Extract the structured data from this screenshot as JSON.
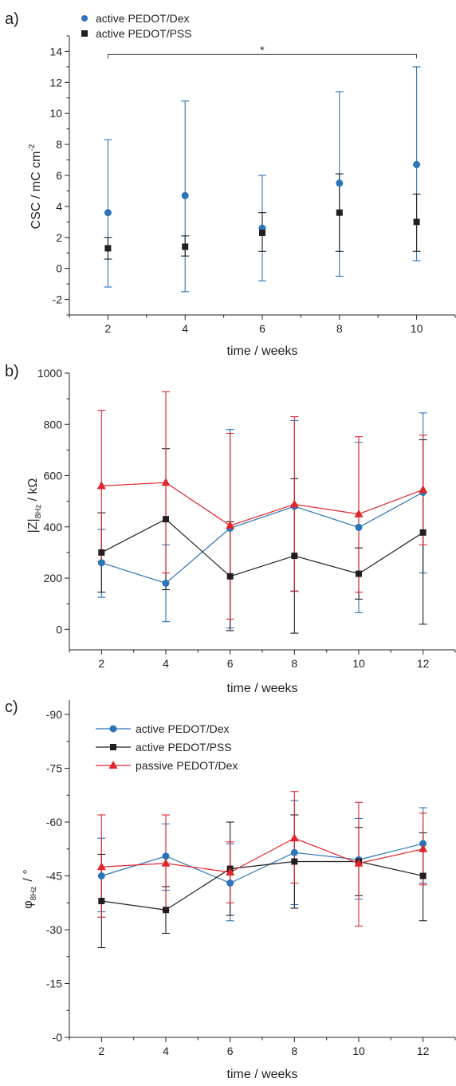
{
  "colors": {
    "blue": "#2b74b8",
    "black": "#231f20",
    "red": "#e0262b",
    "axis": "#231f20"
  },
  "chart_data": [
    {
      "panel_label": "a)",
      "type": "scatter",
      "xlabel": "time / weeks",
      "ylabel": "CSC / mC cm",
      "ylabel_sup": "-2",
      "xlim": [
        1,
        11
      ],
      "ylim": [
        -3,
        15
      ],
      "xticks": [
        2,
        4,
        6,
        8,
        10
      ],
      "yticks": [
        -2,
        0,
        2,
        4,
        6,
        8,
        10,
        12,
        14
      ],
      "legend": "top-left",
      "significance": {
        "label": "*",
        "from": 2,
        "to": 10,
        "y": 13.8
      },
      "series": [
        {
          "name": "active PEDOT/Dex",
          "color": "#2b74b8",
          "marker": "circle",
          "connect": false,
          "x": [
            2,
            4,
            6,
            8,
            10
          ],
          "y": [
            3.6,
            4.7,
            2.6,
            5.5,
            6.7
          ],
          "err_low": [
            -1.2,
            -1.5,
            -0.8,
            -0.5,
            0.5
          ],
          "err_high": [
            8.3,
            10.8,
            6.0,
            11.4,
            13.0
          ]
        },
        {
          "name": "active PEDOT/PSS",
          "color": "#231f20",
          "marker": "square",
          "connect": false,
          "x": [
            2,
            4,
            6,
            8,
            10
          ],
          "y": [
            1.3,
            1.4,
            2.3,
            3.6,
            3.0
          ],
          "err_low": [
            0.6,
            0.8,
            1.1,
            1.1,
            1.1
          ],
          "err_high": [
            2.0,
            2.1,
            3.6,
            6.1,
            4.8
          ]
        }
      ]
    },
    {
      "panel_label": "b)",
      "type": "line",
      "xlabel": "time / weeks",
      "ylabel": "|Z|",
      "ylabel_sub": "8Hz",
      "ylabel_unit": "/ kΩ",
      "xlim": [
        1,
        13
      ],
      "ylim": [
        -80,
        1000
      ],
      "xticks": [
        2,
        4,
        6,
        8,
        10,
        12
      ],
      "yticks": [
        0,
        200,
        400,
        600,
        800,
        1000
      ],
      "series": [
        {
          "name": "active PEDOT/Dex",
          "color": "#2b74b8",
          "marker": "circle",
          "connect": true,
          "x": [
            2,
            4,
            6,
            8,
            10,
            12
          ],
          "y": [
            260,
            180,
            395,
            480,
            398,
            535
          ],
          "err_low": [
            125,
            30,
            5,
            150,
            65,
            220
          ],
          "err_high": [
            390,
            330,
            780,
            815,
            730,
            845
          ]
        },
        {
          "name": "active PEDOT/PSS",
          "color": "#231f20",
          "marker": "square",
          "connect": true,
          "x": [
            2,
            4,
            6,
            8,
            10,
            12
          ],
          "y": [
            300,
            430,
            207,
            287,
            217,
            378
          ],
          "err_low": [
            145,
            155,
            -5,
            -15,
            118,
            20
          ],
          "err_high": [
            455,
            705,
            420,
            588,
            318,
            740
          ]
        },
        {
          "name": "passive PEDOT/Dex",
          "color": "#e0262b",
          "marker": "triangle",
          "connect": true,
          "x": [
            2,
            4,
            6,
            8,
            10,
            12
          ],
          "y": [
            560,
            573,
            405,
            488,
            450,
            545
          ],
          "err_low": [
            265,
            220,
            40,
            148,
            145,
            330
          ],
          "err_high": [
            855,
            928,
            765,
            830,
            752,
            758
          ]
        }
      ]
    },
    {
      "panel_label": "c)",
      "type": "line",
      "xlabel": "time / weeks",
      "ylabel": "φ",
      "ylabel_sub": "8Hz",
      "ylabel_unit": "/ °",
      "xlim": [
        1,
        13
      ],
      "ylim": [
        0,
        -94
      ],
      "xticks": [
        2,
        4,
        6,
        8,
        10,
        12
      ],
      "yticks": [
        -90,
        -75,
        -60,
        -45,
        -30,
        -15,
        0
      ],
      "ytick_labels": [
        "-90",
        "-75",
        "-60",
        "-45",
        "-30",
        "-15",
        "-0"
      ],
      "legend": "top-left",
      "series": [
        {
          "name": "active PEDOT/Dex",
          "color": "#2b74b8",
          "marker": "circle",
          "connect": true,
          "x": [
            2,
            4,
            6,
            8,
            10,
            12
          ],
          "y": [
            -45,
            -50.5,
            -43,
            -51.5,
            -49.5,
            -54
          ],
          "err_low": [
            -35,
            -41,
            -32.5,
            -37,
            -38.5,
            -43
          ],
          "err_high": [
            -55.5,
            -59.5,
            -54,
            -66,
            -61,
            -64
          ]
        },
        {
          "name": "active PEDOT/PSS",
          "color": "#231f20",
          "marker": "square",
          "connect": true,
          "x": [
            2,
            4,
            6,
            8,
            10,
            12
          ],
          "y": [
            -38,
            -35.5,
            -47,
            -49,
            -49,
            -45
          ],
          "err_low": [
            -25,
            -29,
            -34,
            -36,
            -39.5,
            -32.5
          ],
          "err_high": [
            -51,
            -42,
            -60,
            -62,
            -58.5,
            -57
          ]
        },
        {
          "name": "passive PEDOT/Dex",
          "color": "#e0262b",
          "marker": "triangle",
          "connect": true,
          "x": [
            2,
            4,
            6,
            8,
            10,
            12
          ],
          "y": [
            -47.5,
            -48.5,
            -46,
            -55.5,
            -48.5,
            -52.5
          ],
          "err_low": [
            -33.5,
            -35.5,
            -37.5,
            -43,
            -31,
            -42.5
          ],
          "err_high": [
            -62,
            -62,
            -54.5,
            -68.5,
            -65.5,
            -62.5
          ]
        }
      ]
    }
  ]
}
